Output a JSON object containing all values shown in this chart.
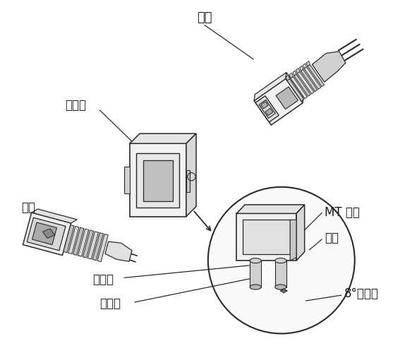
{
  "background_color": "#ffffff",
  "line_color": "#2a2a2a",
  "text_color": "#1a1a1a",
  "labels": {
    "gongtou": "公头",
    "shipeiqi": "适配器",
    "mutou": "母头",
    "MT": "MT 插芯",
    "keti": "壳体",
    "daoyinzhen": "导引针",
    "guangxiankong": "光纤孔",
    "jiaodujiao": "8°倾斜角"
  },
  "font_size": 12,
  "fig_width": 5.57,
  "fig_height": 5.0,
  "dpi": 100
}
